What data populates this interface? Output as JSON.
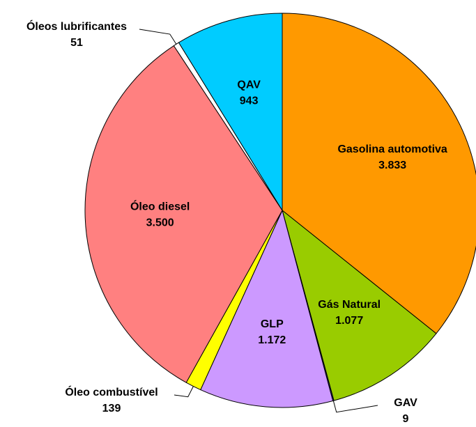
{
  "chart_data": {
    "type": "pie",
    "categories": [
      "Gasolina automotiva",
      "Gás Natural",
      "GAV",
      "GLP",
      "Óleo combustível",
      "Óleo diesel",
      "Óleos lubrificantes",
      "QAV"
    ],
    "values": [
      3833,
      1077,
      9,
      1172,
      139,
      3500,
      51,
      943
    ],
    "value_labels": [
      "3.833",
      "1.077",
      "9",
      "1.172",
      "139",
      "3.500",
      "51",
      "943"
    ],
    "colors": [
      "#ff9900",
      "#99cc00",
      "#333399",
      "#cc99ff",
      "#ffff00",
      "#ff8080",
      "#ffffff",
      "#00ccff"
    ]
  }
}
